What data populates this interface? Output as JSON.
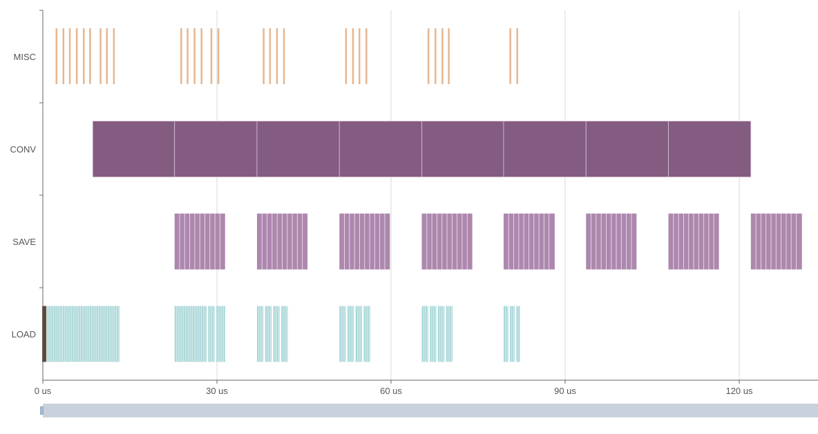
{
  "chart_data": {
    "type": "timeline",
    "lanes": [
      "MISC",
      "CONV",
      "SAVE",
      "LOAD"
    ],
    "x_unit": "us",
    "xlim": [
      0,
      133.5
    ],
    "x_ticks": [
      0,
      30,
      60,
      90,
      120
    ],
    "x_tick_labels": [
      "0 us",
      "30 us",
      "60 us",
      "90 us",
      "120 us"
    ],
    "grid": "vertical",
    "colors": {
      "MISC": "#e6b690",
      "CONV": "#845c82",
      "SAVE": "#ad87ae",
      "LOAD": "#a8d6d7",
      "LOAD_start": "#5b4634",
      "grid": "#d9d9d9",
      "axis": "#666666"
    },
    "events": {
      "MISC": [
        [
          2.2,
          2.5
        ],
        [
          3.4,
          3.7
        ],
        [
          4.5,
          4.8
        ],
        [
          5.7,
          6.0
        ],
        [
          6.9,
          7.2
        ],
        [
          8.0,
          8.3
        ],
        [
          9.8,
          10.1
        ],
        [
          10.9,
          11.2
        ],
        [
          12.1,
          12.4
        ],
        [
          23.7,
          24.0
        ],
        [
          24.8,
          25.1
        ],
        [
          26.0,
          26.3
        ],
        [
          27.2,
          27.5
        ],
        [
          28.9,
          29.2
        ],
        [
          30.1,
          30.4
        ],
        [
          37.9,
          38.2
        ],
        [
          39.0,
          39.3
        ],
        [
          40.2,
          40.5
        ],
        [
          41.4,
          41.7
        ],
        [
          52.1,
          52.4
        ],
        [
          53.3,
          53.6
        ],
        [
          54.4,
          54.7
        ],
        [
          55.6,
          55.9
        ],
        [
          66.3,
          66.6
        ],
        [
          67.5,
          67.8
        ],
        [
          68.7,
          69.0
        ],
        [
          69.8,
          70.1
        ],
        [
          80.4,
          80.7
        ],
        [
          81.6,
          81.9
        ]
      ],
      "CONV": [
        [
          8.6,
          22.7
        ],
        [
          22.7,
          36.9
        ],
        [
          36.9,
          51.1
        ],
        [
          51.1,
          65.3
        ],
        [
          65.3,
          79.4
        ],
        [
          79.4,
          93.6
        ],
        [
          93.6,
          107.8
        ],
        [
          107.8,
          122.0
        ]
      ],
      "SAVE": [
        [
          22.7,
          31.4
        ],
        [
          36.9,
          45.6
        ],
        [
          51.1,
          59.8
        ],
        [
          65.3,
          74.0
        ],
        [
          79.4,
          88.2
        ],
        [
          93.6,
          102.3
        ],
        [
          107.8,
          116.5
        ],
        [
          122.0,
          130.8
        ]
      ],
      "LOAD": [
        [
          0,
          13.2
        ],
        [
          22.7,
          28.2
        ],
        [
          28.5,
          29.6
        ],
        [
          29.9,
          31.4
        ],
        [
          36.9,
          38.0
        ],
        [
          38.3,
          39.4
        ],
        [
          39.7,
          40.8
        ],
        [
          41.1,
          42.2
        ],
        [
          51.1,
          52.2
        ],
        [
          52.5,
          53.6
        ],
        [
          53.9,
          55.0
        ],
        [
          55.3,
          56.4
        ],
        [
          65.3,
          66.4
        ],
        [
          66.7,
          67.8
        ],
        [
          68.1,
          69.2
        ],
        [
          69.5,
          70.6
        ],
        [
          79.4,
          80.2
        ],
        [
          80.5,
          81.3
        ],
        [
          81.6,
          82.2
        ]
      ]
    },
    "load_start_marker": [
      0,
      0.4
    ]
  }
}
